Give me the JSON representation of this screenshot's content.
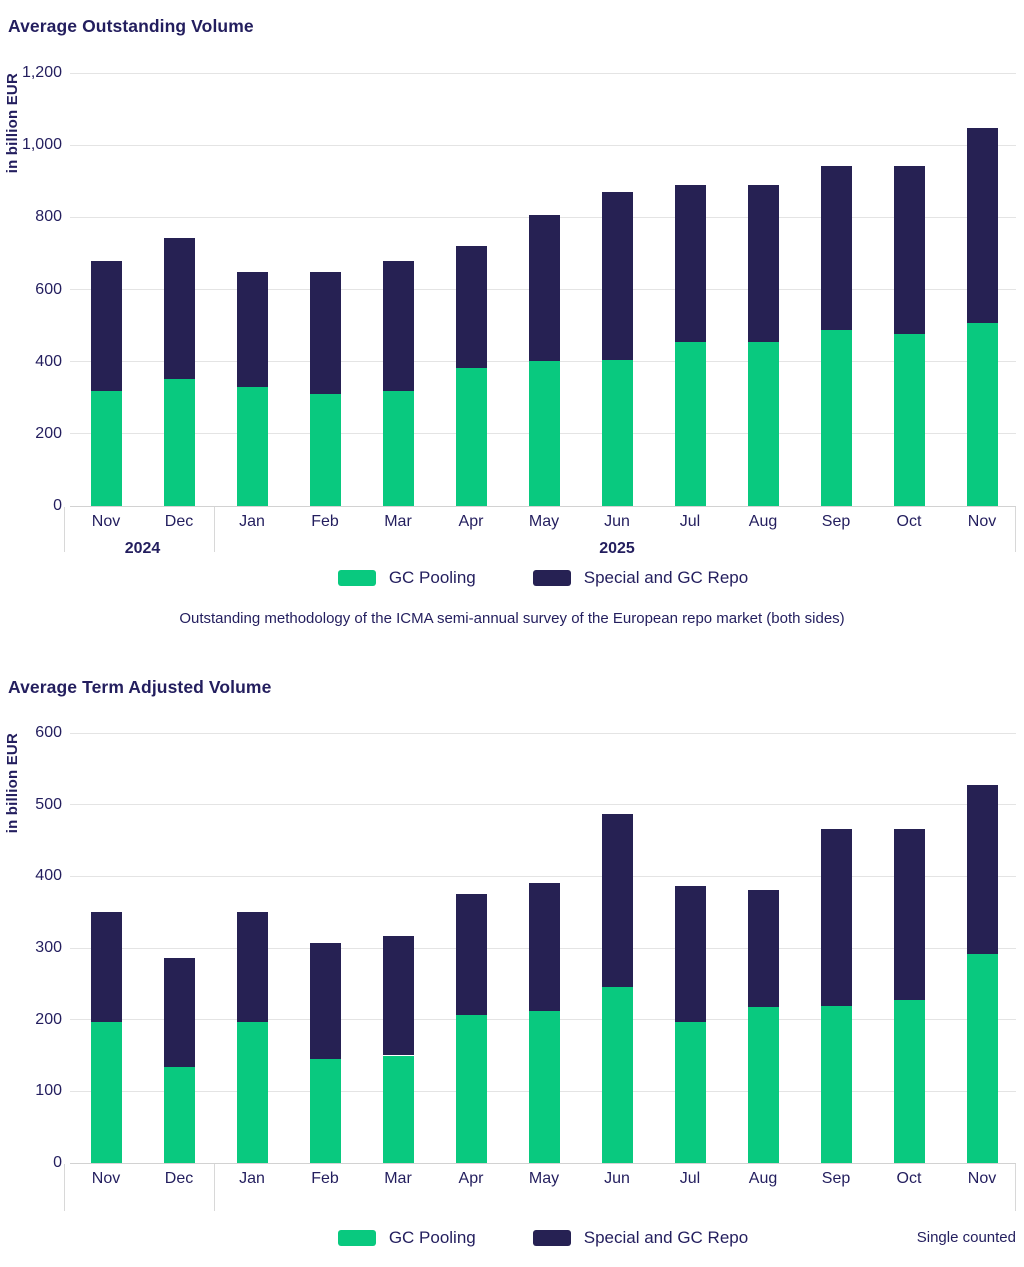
{
  "colors": {
    "gc_pooling": "#09c97f",
    "special_and_gc_repo": "#262153",
    "text": "#231e5e",
    "gridline": "#e4e4e4",
    "axis_line": "#d2d2d2",
    "separator": "#d8d8d8"
  },
  "chart_data": [
    {
      "type": "bar",
      "stacked": true,
      "title": "Average Outstanding Volume",
      "ylabel": "in billion EUR",
      "ylim": [
        0,
        1200
      ],
      "ytick_step": 200,
      "grid": true,
      "legend_position": "bottom",
      "categories": [
        "Nov",
        "Dec",
        "Jan",
        "Feb",
        "Mar",
        "Apr",
        "May",
        "Jun",
        "Jul",
        "Aug",
        "Sep",
        "Oct",
        "Nov"
      ],
      "year_groups": [
        {
          "label": "2024",
          "span": [
            0,
            1
          ]
        },
        {
          "label": "2025",
          "span": [
            2,
            12
          ]
        }
      ],
      "series": [
        {
          "name": "GC Pooling",
          "color_key": "gc_pooling",
          "values": [
            320,
            352,
            330,
            310,
            320,
            382,
            403,
            405,
            455,
            455,
            487,
            477,
            507
          ]
        },
        {
          "name": "Special and GC Repo",
          "color_key": "special_and_gc_repo",
          "values": [
            360,
            390,
            318,
            338,
            360,
            339,
            403,
            464,
            434,
            434,
            456,
            466,
            540
          ]
        }
      ],
      "totals": [
        680,
        742,
        648,
        648,
        680,
        721,
        806,
        869,
        889,
        889,
        943,
        943,
        1047
      ],
      "footnote": "Outstanding methodology of the ICMA semi-annual survey of the European repo market (both sides)"
    },
    {
      "type": "bar",
      "stacked": true,
      "title": "Average Term Adjusted Volume",
      "ylabel": "in billion EUR",
      "ylim": [
        0,
        600
      ],
      "ytick_step": 100,
      "grid": true,
      "legend_position": "bottom",
      "categories": [
        "Nov",
        "Dec",
        "Jan",
        "Feb",
        "Mar",
        "Apr",
        "May",
        "Jun",
        "Jul",
        "Aug",
        "Sep",
        "Oct",
        "Nov"
      ],
      "year_groups": [
        {
          "label": "",
          "span": [
            0,
            1
          ]
        },
        {
          "label": "",
          "span": [
            2,
            12
          ]
        }
      ],
      "series": [
        {
          "name": "GC Pooling",
          "color_key": "gc_pooling",
          "values": [
            197,
            134,
            197,
            145,
            150,
            207,
            212,
            245,
            197,
            218,
            219,
            228,
            291
          ]
        },
        {
          "name": "Special and GC Repo",
          "color_key": "special_and_gc_repo",
          "values": [
            153,
            152,
            153,
            162,
            167,
            169,
            179,
            242,
            189,
            163,
            247,
            238,
            237
          ]
        }
      ],
      "totals": [
        350,
        286,
        350,
        307,
        317,
        376,
        391,
        487,
        386,
        381,
        466,
        466,
        528
      ],
      "note_right": "Single counted"
    }
  ]
}
